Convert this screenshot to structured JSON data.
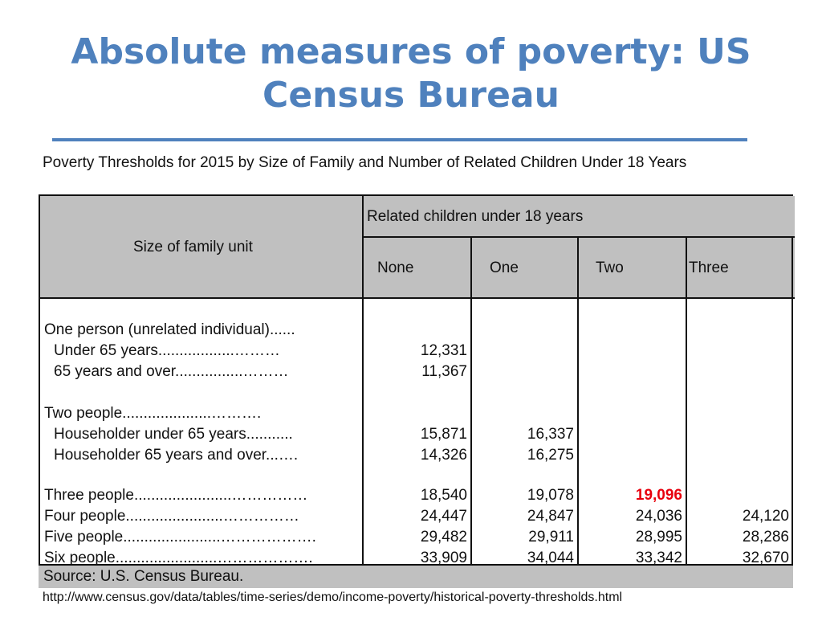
{
  "slide": {
    "title": "Absolute measures of poverty: US Census Bureau",
    "accent_color": "#4f81bd"
  },
  "table": {
    "caption": "Poverty Thresholds for 2015 by Size of Family and Number of Related Children Under 18 Years",
    "header": {
      "size_label": "Size of family unit",
      "group_label": "Related children under 18 years",
      "columns": [
        "None",
        "One",
        "Two",
        "Three"
      ]
    },
    "rows": [
      {
        "label": "One person (unrelated individual)......",
        "indent": false,
        "values": [
          "",
          "",
          "",
          ""
        ]
      },
      {
        "label": "Under 65 years..................………",
        "indent": true,
        "values": [
          "12,331",
          "",
          "",
          ""
        ]
      },
      {
        "label": "65 years and over................………",
        "indent": true,
        "values": [
          "11,367",
          "",
          "",
          ""
        ]
      },
      {
        "label": "",
        "indent": false,
        "values": [
          "",
          "",
          "",
          ""
        ]
      },
      {
        "label": "Two people.....................……….",
        "indent": false,
        "values": [
          "",
          "",
          "",
          ""
        ]
      },
      {
        "label": "Householder under 65 years...........",
        "indent": true,
        "values": [
          "15,871",
          "16,337",
          "",
          ""
        ]
      },
      {
        "label": "Householder 65 years and over...….",
        "indent": true,
        "values": [
          "14,326",
          "16,275",
          "",
          ""
        ]
      },
      {
        "label": "",
        "indent": false,
        "values": [
          "",
          "",
          "",
          ""
        ]
      },
      {
        "label": "Three people.......................……………",
        "indent": false,
        "values": [
          "18,540",
          "19,078",
          "19,096",
          ""
        ]
      },
      {
        "label": "Four people.......................……………",
        "indent": false,
        "values": [
          "24,447",
          "24,847",
          "24,036",
          "24,120"
        ]
      },
      {
        "label": "Five people.......................……………….",
        "indent": false,
        "values": [
          "29,482",
          "29,911",
          "28,995",
          "28,286"
        ]
      },
      {
        "label": "Six people........................……………….",
        "indent": false,
        "values": [
          "33,909",
          "34,044",
          "33,342",
          "32,670"
        ]
      }
    ],
    "highlight": {
      "row": 8,
      "col": 2,
      "color": "#e8000d"
    }
  },
  "source": {
    "label": "Source:  U.S. Census Bureau.",
    "url": "http://www.census.gov/data/tables/time-series/demo/income-poverty/historical-poverty-thresholds.html"
  }
}
